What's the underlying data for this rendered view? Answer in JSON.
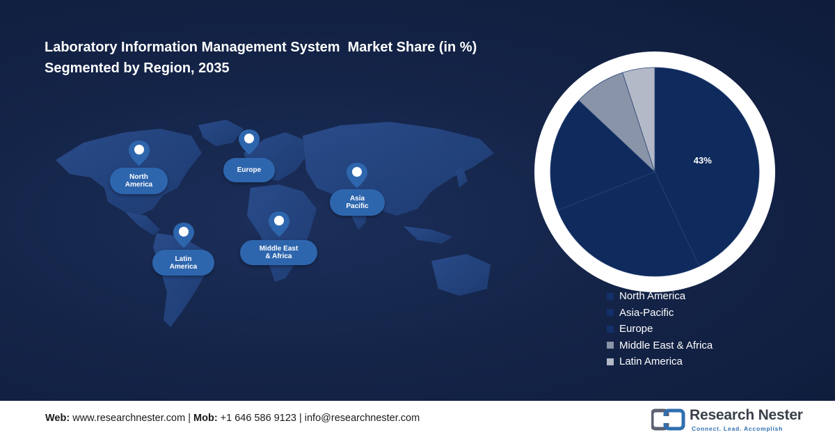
{
  "title": {
    "line1": "Laboratory Information Management System  Market Share (in %)",
    "line2": "Segmented by Region, 2035"
  },
  "map_regions": [
    {
      "label_line1": "North",
      "label_line2": "America"
    },
    {
      "label_line1": "Europe",
      "label_line2": ""
    },
    {
      "label_line1": "Asia",
      "label_line2": "Pacific"
    },
    {
      "label_line1": "Middle East",
      "label_line2": "& Africa"
    },
    {
      "label_line1": "Latin",
      "label_line2": "America"
    }
  ],
  "chart_data": {
    "type": "pie",
    "title": "",
    "labels": [
      "North America",
      "Asia-Pacific",
      "Europe",
      "Middle East & Africa",
      "Latin America"
    ],
    "values": [
      43,
      26,
      18,
      8,
      5
    ],
    "data_labels": [
      "43%",
      "",
      "",
      "",
      ""
    ],
    "colors": [
      "#0f2a5c",
      "#0f2a5c",
      "#0f2a5c",
      "#8a94a8",
      "#b3b9c6"
    ],
    "legend_placement": "bottom-right"
  },
  "footer": {
    "web_label": "Web:",
    "web_value": " www.researchnester.com | ",
    "mob_label": "Mob:",
    "mob_value": " +1 646 586 9123 | info@researchnester.com"
  },
  "logo": {
    "name": "Research Nester",
    "tagline": "Connect. Lead. Accomplish"
  }
}
